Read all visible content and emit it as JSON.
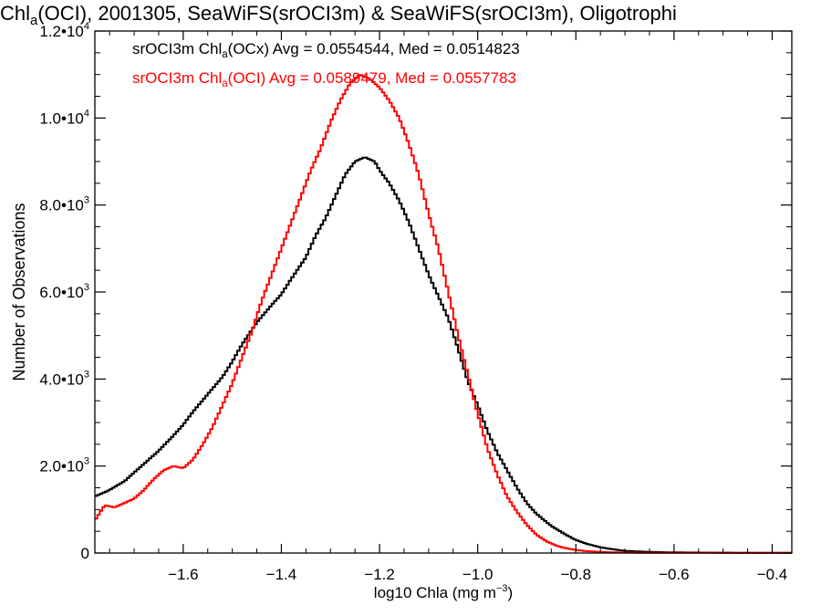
{
  "chart_data": {
    "type": "line",
    "title": {
      "pre": "Chl",
      "sub": "a",
      "post": "(OCI), 2001305, SeaWiFS(srOCI3m) & SeaWiFS(srOCI3m), Oligotrophi"
    },
    "xlabel": {
      "pre": "log10 Chla (mg m",
      "sup": "−3",
      "post": ")"
    },
    "ylabel": "Number of Observations",
    "xlim": [
      -1.78,
      -0.36
    ],
    "ylim": [
      0,
      12000
    ],
    "x_ticks": [
      {
        "value": -1.6,
        "label": "−1.6"
      },
      {
        "value": -1.4,
        "label": "−1.4"
      },
      {
        "value": -1.2,
        "label": "−1.2"
      },
      {
        "value": -1.0,
        "label": "−1.0"
      },
      {
        "value": -0.8,
        "label": "−0.8"
      },
      {
        "value": -0.6,
        "label": "−0.6"
      },
      {
        "value": -0.4,
        "label": "−0.4"
      }
    ],
    "y_ticks": [
      {
        "value": 0,
        "mant": "0",
        "exp": ""
      },
      {
        "value": 2000,
        "mant": "2.0•10",
        "exp": "3"
      },
      {
        "value": 4000,
        "mant": "4.0•10",
        "exp": "3"
      },
      {
        "value": 6000,
        "mant": "6.0•10",
        "exp": "3"
      },
      {
        "value": 8000,
        "mant": "8.0•10",
        "exp": "3"
      },
      {
        "value": 10000,
        "mant": "1.0•10",
        "exp": "4"
      },
      {
        "value": 12000,
        "mant": "1.2•10",
        "exp": "4"
      }
    ],
    "grid": false,
    "legend_position": "top-left",
    "series": [
      {
        "legend": {
          "pre": "srOCI3m Chl",
          "sub": "a",
          "post": "(OCx) Avg = 0.0554544, Med = 0.0514823"
        },
        "color": "#000000",
        "x": [
          -1.78,
          -1.75,
          -1.72,
          -1.7,
          -1.68,
          -1.65,
          -1.62,
          -1.6,
          -1.58,
          -1.55,
          -1.52,
          -1.5,
          -1.48,
          -1.45,
          -1.42,
          -1.4,
          -1.38,
          -1.35,
          -1.33,
          -1.31,
          -1.29,
          -1.27,
          -1.25,
          -1.23,
          -1.21,
          -1.2,
          -1.18,
          -1.16,
          -1.14,
          -1.12,
          -1.1,
          -1.08,
          -1.06,
          -1.04,
          -1.02,
          -1.0,
          -0.98,
          -0.96,
          -0.94,
          -0.92,
          -0.9,
          -0.88,
          -0.85,
          -0.82,
          -0.8,
          -0.78,
          -0.75,
          -0.72,
          -0.7,
          -0.65,
          -0.6,
          -0.5,
          -0.4,
          -0.36
        ],
        "y": [
          1300,
          1450,
          1650,
          1850,
          2050,
          2350,
          2700,
          2950,
          3250,
          3650,
          4050,
          4400,
          4800,
          5300,
          5700,
          5950,
          6300,
          6800,
          7300,
          7700,
          8200,
          8700,
          9000,
          9100,
          9000,
          8800,
          8500,
          8100,
          7600,
          7000,
          6400,
          5900,
          5400,
          4700,
          3950,
          3400,
          2800,
          2300,
          1900,
          1500,
          1150,
          900,
          620,
          420,
          300,
          220,
          130,
          80,
          50,
          25,
          15,
          8,
          5,
          5
        ]
      },
      {
        "legend": {
          "pre": "srOCI3m Chl",
          "sub": "a",
          "post": "(OCI) Avg = 0.0589479, Med = 0.0557783"
        },
        "color": "#ff0000",
        "x": [
          -1.78,
          -1.76,
          -1.74,
          -1.72,
          -1.7,
          -1.68,
          -1.66,
          -1.64,
          -1.62,
          -1.6,
          -1.58,
          -1.56,
          -1.54,
          -1.52,
          -1.5,
          -1.48,
          -1.46,
          -1.44,
          -1.42,
          -1.4,
          -1.38,
          -1.36,
          -1.34,
          -1.32,
          -1.3,
          -1.28,
          -1.26,
          -1.24,
          -1.22,
          -1.2,
          -1.18,
          -1.16,
          -1.14,
          -1.12,
          -1.1,
          -1.08,
          -1.06,
          -1.04,
          -1.02,
          -1.0,
          -0.98,
          -0.96,
          -0.94,
          -0.92,
          -0.9,
          -0.88,
          -0.86,
          -0.84,
          -0.82,
          -0.8,
          -0.78,
          -0.75,
          -0.72,
          -0.7,
          -0.65,
          -0.6,
          -0.5,
          -0.4,
          -0.36
        ],
        "y": [
          750,
          1100,
          1050,
          1150,
          1250,
          1450,
          1700,
          1900,
          2000,
          1950,
          2150,
          2500,
          2900,
          3400,
          3900,
          4500,
          5100,
          5800,
          6400,
          7000,
          7600,
          8200,
          8800,
          9300,
          9900,
          10400,
          10800,
          11000,
          10900,
          10700,
          10400,
          10000,
          9400,
          8700,
          7800,
          7000,
          6000,
          5000,
          4100,
          3200,
          2400,
          1800,
          1300,
          950,
          650,
          420,
          270,
          170,
          110,
          70,
          45,
          25,
          15,
          10,
          5,
          5,
          3,
          2,
          2
        ]
      }
    ]
  }
}
